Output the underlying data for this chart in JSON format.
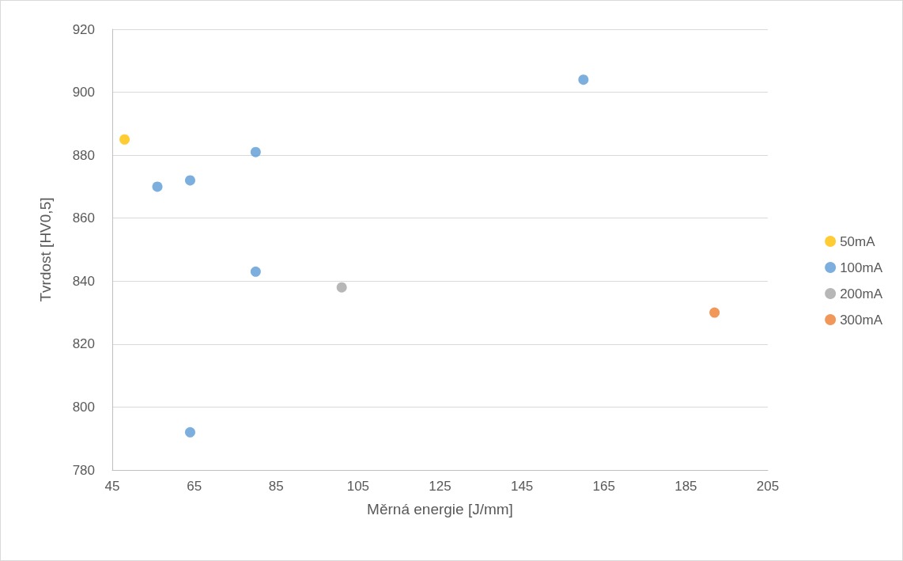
{
  "chart_data": {
    "type": "scatter",
    "xlabel": "Měrná energie [J/mm]",
    "ylabel": "Tvrdost [HV0,5]",
    "xlim": [
      45,
      205
    ],
    "xticks": [
      45,
      65,
      85,
      105,
      125,
      145,
      165,
      185,
      205
    ],
    "ylim": [
      780,
      920
    ],
    "yticks": [
      780,
      800,
      820,
      840,
      860,
      880,
      900,
      920
    ],
    "grid": "y",
    "legend": "right",
    "marker": "circle",
    "series": [
      {
        "name": "50mA",
        "color": "#ffc000",
        "x": [
          48
        ],
        "values": [
          885
        ]
      },
      {
        "name": "100mA",
        "color": "#5b9bd5",
        "x": [
          56,
          64,
          80,
          80,
          64,
          160
        ],
        "values": [
          870,
          872,
          881,
          843,
          792,
          904
        ]
      },
      {
        "name": "200mA",
        "color": "#a5a5a5",
        "x": [
          101
        ],
        "values": [
          838
        ]
      },
      {
        "name": "300mA",
        "color": "#ed7d31",
        "x": [
          192
        ],
        "values": [
          830
        ]
      }
    ]
  }
}
